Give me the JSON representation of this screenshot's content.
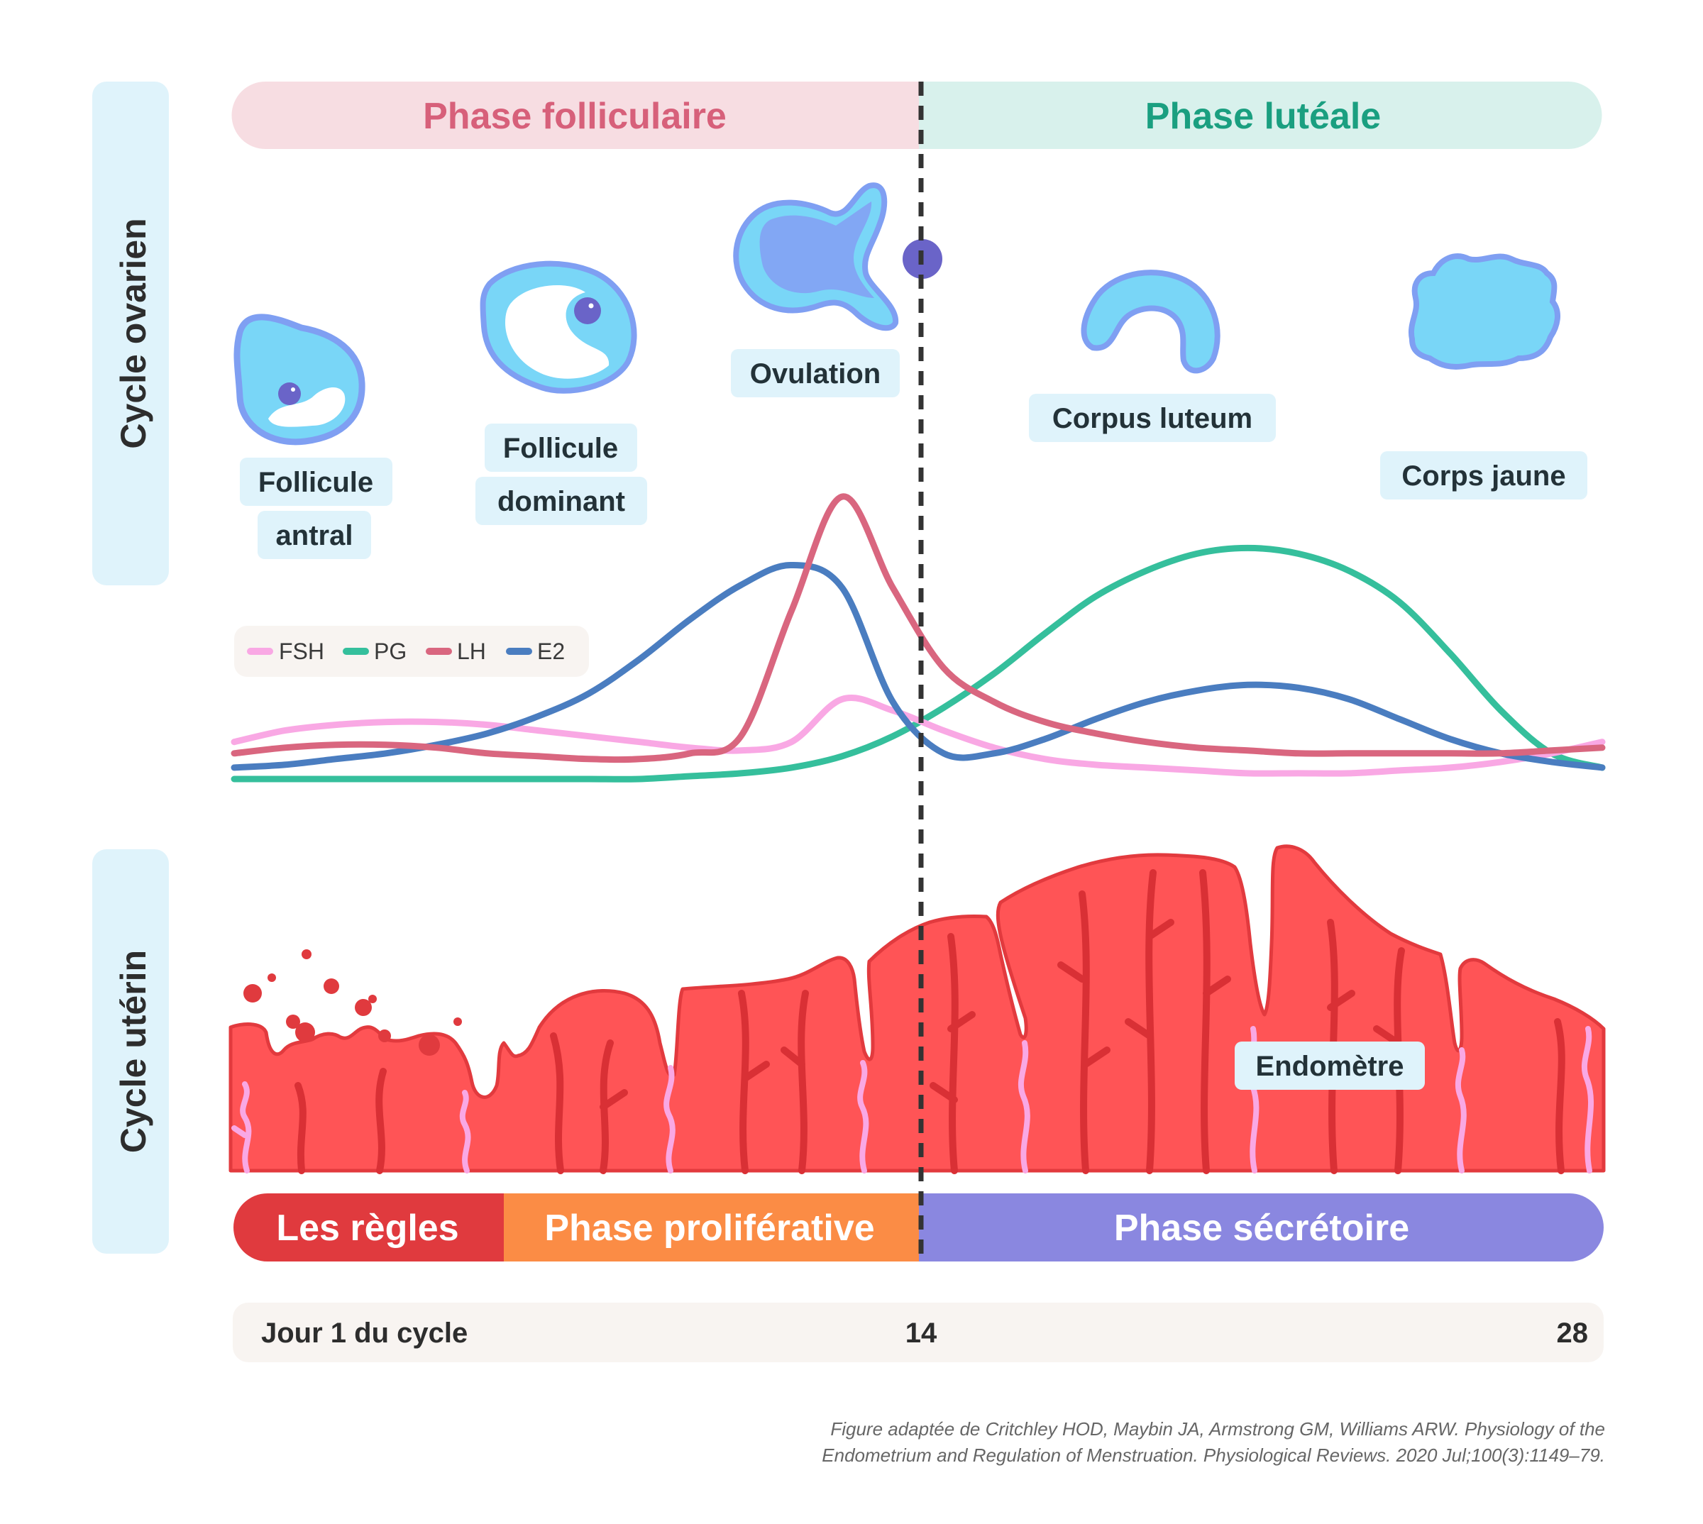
{
  "side_labels": {
    "ovarian": "Cycle ovarien",
    "uterine": "Cycle utérin"
  },
  "phases": {
    "follicular": "Phase folliculaire",
    "luteal": "Phase lutéale"
  },
  "stages": {
    "antral_line1": "Follicule",
    "antral_line2": "antral",
    "dominant_line1": "Follicule",
    "dominant_line2": "dominant",
    "ovulation": "Ovulation",
    "corpus_luteum": "Corpus luteum",
    "corps_jaune": "Corps jaune"
  },
  "endometrium_label": "Endomètre",
  "uterine_phases": {
    "menses": "Les règles",
    "proliferative": "Phase proliférative",
    "secretory": "Phase sécrétoire"
  },
  "timeline": {
    "start": "Jour 1 du cycle",
    "mid": "14",
    "end": "28"
  },
  "citation": {
    "line1": "Figure adaptée de Critchley HOD, Maybin JA, Armstrong GM, Williams ARW. Physiology of the",
    "line2": "Endometrium and Regulation of Menstruation. Physiological Reviews. 2020 Jul;100(3):1149–79."
  },
  "colors": {
    "FSH": "#f9a8e4",
    "PG": "#35bf9c",
    "LH": "#d9667f",
    "E2": "#4a7dc0",
    "follicular_bg": "#f7dde2",
    "luteal_bg": "#d8f1ec",
    "menses": "#e03a3e",
    "proliferative": "#fb8c45",
    "secretory": "#8a87e0"
  },
  "chart_data": {
    "type": "line",
    "title": "",
    "xlabel": "Jour du cycle",
    "ylabel": "",
    "x_range": [
      1,
      28
    ],
    "y_range": [
      0,
      100
    ],
    "legend": [
      "FSH",
      "PG",
      "LH",
      "E2"
    ],
    "legend_position": "top-left",
    "x": [
      1,
      2,
      3,
      4,
      5,
      6,
      7,
      8,
      9,
      10,
      11,
      12,
      13,
      14,
      15,
      16,
      17,
      18,
      19,
      20,
      21,
      22,
      23,
      24,
      25,
      26,
      27,
      28
    ],
    "series": [
      {
        "name": "FSH",
        "values": [
          14,
          18,
          20,
          21,
          21,
          20,
          18,
          16,
          14,
          12,
          11,
          14,
          29,
          25,
          18,
          12,
          8,
          6,
          5,
          4,
          3,
          3,
          3,
          4,
          5,
          7,
          10,
          14
        ]
      },
      {
        "name": "PG",
        "values": [
          1,
          1,
          1,
          1,
          1,
          1,
          1,
          1,
          1,
          2,
          3,
          5,
          9,
          16,
          26,
          38,
          52,
          65,
          74,
          80,
          82,
          80,
          74,
          63,
          45,
          25,
          10,
          5
        ]
      },
      {
        "name": "LH",
        "values": [
          10,
          12,
          13,
          13,
          12,
          10,
          9,
          8,
          8,
          10,
          16,
          60,
          100,
          68,
          40,
          28,
          21,
          17,
          14,
          12,
          11,
          10,
          10,
          10,
          10,
          10,
          11,
          12
        ]
      },
      {
        "name": "E2",
        "values": [
          5,
          6,
          8,
          10,
          13,
          17,
          23,
          31,
          43,
          57,
          69,
          76,
          68,
          28,
          10,
          10,
          15,
          22,
          28,
          32,
          34,
          33,
          29,
          22,
          15,
          10,
          7,
          5
        ]
      }
    ]
  }
}
